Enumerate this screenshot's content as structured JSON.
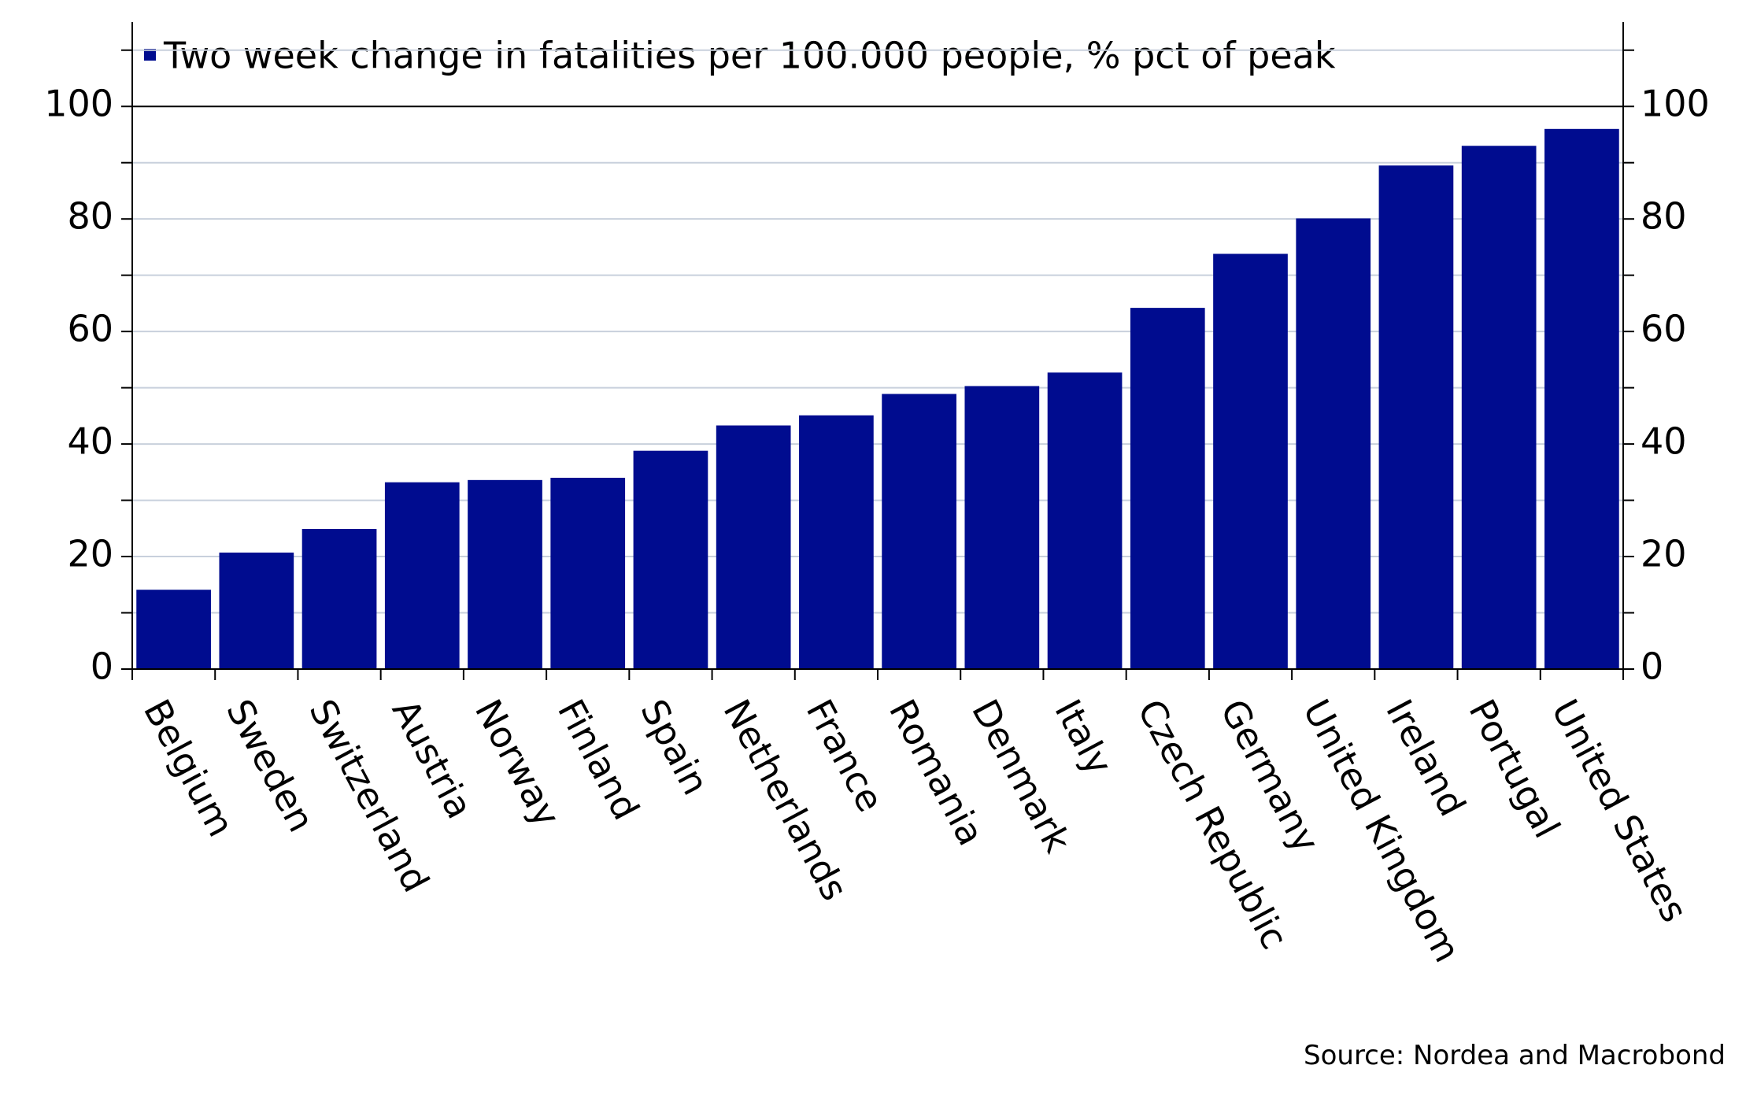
{
  "chart_data": {
    "type": "bar",
    "legend": "Two week change in fatalities per 100.000 people, % pct of peak",
    "source": "Source: Nordea and Macrobond",
    "categories": [
      "Belgium",
      "Sweden",
      "Switzerland",
      "Austria",
      "Norway",
      "Finland",
      "Spain",
      "Netherlands",
      "France",
      "Romania",
      "Denmark",
      "Italy",
      "Czech Republic",
      "Germany",
      "United Kingdom",
      "Ireland",
      "Portugal",
      "United States"
    ],
    "values": [
      14.1,
      20.7,
      24.9,
      33.2,
      33.6,
      34.0,
      38.8,
      43.3,
      45.1,
      48.9,
      50.3,
      52.7,
      64.2,
      73.8,
      80.1,
      89.5,
      93.0,
      96.0
    ],
    "color": "#000c8f",
    "ylim": [
      0,
      115
    ],
    "yticks": [
      0,
      20,
      40,
      60,
      80,
      100
    ],
    "y2lim": [
      0,
      115
    ],
    "y2ticks": [
      0,
      20,
      40,
      60,
      80,
      100
    ],
    "minor_yticks": [
      10,
      30,
      50,
      70,
      90,
      110
    ],
    "grid": true
  }
}
